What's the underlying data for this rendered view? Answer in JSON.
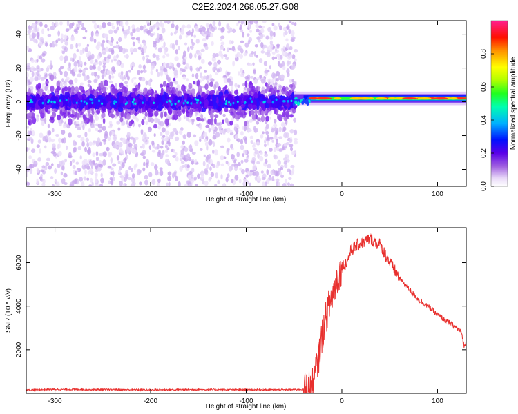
{
  "figure": {
    "title": "C2E2.2024.268.05.27.G08"
  },
  "chart_data": [
    {
      "type": "heatmap",
      "title": "C2E2.2024.268.05.27.G08",
      "xlabel": "Height of straight line (km)",
      "ylabel": "Frequency (Hz)",
      "xlim": [
        -330,
        130
      ],
      "ylim": [
        -50,
        48
      ],
      "xticks": [
        -300,
        -200,
        -100,
        0,
        100
      ],
      "yticks": [
        -40,
        -20,
        0,
        20,
        40
      ],
      "colorbar": {
        "label": "Normalized spectral amplitude",
        "range": [
          0,
          1
        ],
        "ticks": [
          "0.0",
          "0.2",
          "0.4",
          "0.6",
          "0.8"
        ],
        "colormap": [
          "#ffffff",
          "#d4b8f0",
          "#8a2be2",
          "#0000ff",
          "#00c8ff",
          "#00ff80",
          "#80ff00",
          "#ffff00",
          "#ff8000",
          "#ff0000",
          "#ff0080"
        ]
      },
      "regions": [
        {
          "x": [
            -330,
            -50
          ],
          "description": "scattered low-amplitude noise across all frequencies, denser near 0 Hz"
        },
        {
          "x": [
            -50,
            130
          ],
          "freq_center": 2,
          "amplitude": "high (0.8-1.0) concentrated near 0-3 Hz"
        }
      ]
    },
    {
      "type": "line",
      "xlabel": "Height of straight line (km)",
      "ylabel": "SNR (10 * v/v)",
      "xlim": [
        -330,
        130
      ],
      "ylim": [
        0,
        7600
      ],
      "xticks": [
        -300,
        -200,
        -100,
        0,
        100
      ],
      "yticks": [
        2000,
        4000,
        6000
      ],
      "color": "#e8302e",
      "x": [
        -330,
        -300,
        -250,
        -200,
        -150,
        -100,
        -60,
        -40,
        -30,
        -25,
        -20,
        -15,
        -10,
        -5,
        0,
        5,
        10,
        20,
        30,
        40,
        50,
        60,
        70,
        80,
        90,
        100,
        110,
        120,
        125,
        128,
        130
      ],
      "y": [
        150,
        180,
        170,
        160,
        170,
        160,
        160,
        180,
        400,
        1500,
        2800,
        3800,
        4500,
        5200,
        5800,
        6000,
        6600,
        6900,
        7100,
        6800,
        6000,
        5300,
        4800,
        4300,
        4000,
        3600,
        3300,
        3000,
        2800,
        2100,
        2400
      ]
    }
  ]
}
